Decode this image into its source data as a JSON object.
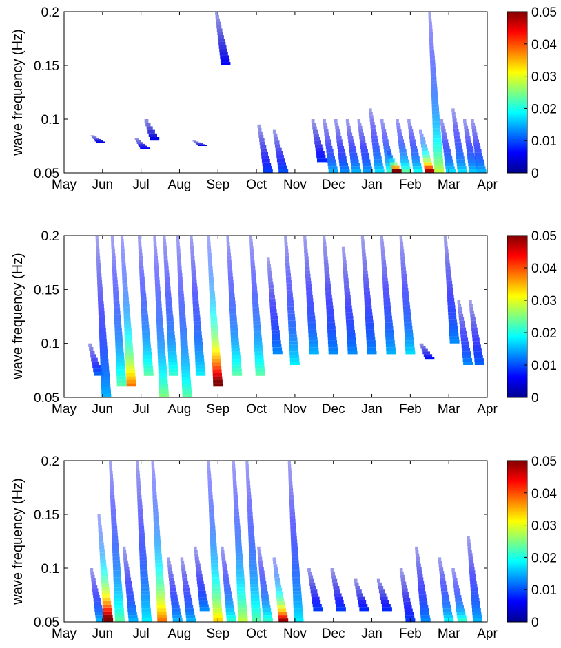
{
  "chart_data": [
    {
      "type": "heatmap",
      "title": "",
      "ylabel": "wave frequency (Hz)",
      "xlabel": "",
      "x_tick_labels": [
        "May",
        "Jun",
        "Jul",
        "Aug",
        "Sep",
        "Oct",
        "Nov",
        "Dec",
        "Jan",
        "Feb",
        "Mar",
        "Apr"
      ],
      "y_ticks": [
        0.05,
        0.1,
        0.15,
        0.2
      ],
      "y_tick_labels": [
        "0.05",
        "0.1",
        "0.15",
        "0.2"
      ],
      "ylim": [
        0.05,
        0.2
      ],
      "colorbar": {
        "min": 0,
        "max": 0.05,
        "ticks": [
          "0",
          "0.01",
          "0.02",
          "0.03",
          "0.04",
          "0.05"
        ],
        "colormap": "jet"
      },
      "events": [
        {
          "month": 0.95,
          "fmin": 0.078,
          "fmax": 0.085,
          "peak": 0.002
        },
        {
          "month": 2.1,
          "fmin": 0.072,
          "fmax": 0.082,
          "peak": 0.003
        },
        {
          "month": 2.35,
          "fmin": 0.08,
          "fmax": 0.1,
          "peak": 0.002
        },
        {
          "month": 3.6,
          "fmin": 0.075,
          "fmax": 0.08,
          "peak": 0.002
        },
        {
          "month": 4.2,
          "fmin": 0.15,
          "fmax": 0.2,
          "peak": 0.003
        },
        {
          "month": 5.3,
          "fmin": 0.05,
          "fmax": 0.095,
          "peak": 0.006
        },
        {
          "month": 5.7,
          "fmin": 0.05,
          "fmax": 0.09,
          "peak": 0.007
        },
        {
          "month": 6.7,
          "fmin": 0.06,
          "fmax": 0.1,
          "peak": 0.005
        },
        {
          "month": 7.0,
          "fmin": 0.05,
          "fmax": 0.1,
          "peak": 0.012
        },
        {
          "month": 7.3,
          "fmin": 0.05,
          "fmax": 0.1,
          "peak": 0.01
        },
        {
          "month": 7.6,
          "fmin": 0.05,
          "fmax": 0.1,
          "peak": 0.012
        },
        {
          "month": 7.9,
          "fmin": 0.05,
          "fmax": 0.1,
          "peak": 0.011
        },
        {
          "month": 8.2,
          "fmin": 0.05,
          "fmax": 0.11,
          "peak": 0.014
        },
        {
          "month": 8.5,
          "fmin": 0.05,
          "fmax": 0.1,
          "peak": 0.018
        },
        {
          "month": 8.65,
          "fmin": 0.05,
          "fmax": 0.07,
          "peak": 0.05
        },
        {
          "month": 8.9,
          "fmin": 0.05,
          "fmax": 0.1,
          "peak": 0.02
        },
        {
          "month": 9.2,
          "fmin": 0.05,
          "fmax": 0.1,
          "peak": 0.016
        },
        {
          "month": 9.5,
          "fmin": 0.05,
          "fmax": 0.09,
          "peak": 0.045
        },
        {
          "month": 9.75,
          "fmin": 0.05,
          "fmax": 0.2,
          "peak": 0.025
        },
        {
          "month": 10.05,
          "fmin": 0.05,
          "fmax": 0.1,
          "peak": 0.014
        },
        {
          "month": 10.35,
          "fmin": 0.05,
          "fmax": 0.11,
          "peak": 0.014
        },
        {
          "month": 10.65,
          "fmin": 0.05,
          "fmax": 0.1,
          "peak": 0.013
        },
        {
          "month": 10.85,
          "fmin": 0.05,
          "fmax": 0.1,
          "peak": 0.012
        }
      ]
    },
    {
      "type": "heatmap",
      "title": "",
      "ylabel": "wave frequency (Hz)",
      "xlabel": "",
      "x_tick_labels": [
        "May",
        "Jun",
        "Jul",
        "Aug",
        "Sep",
        "Oct",
        "Nov",
        "Dec",
        "Jan",
        "Feb",
        "Mar",
        "Apr"
      ],
      "y_ticks": [
        0.05,
        0.1,
        0.15,
        0.2
      ],
      "y_tick_labels": [
        "0.05",
        "0.1",
        "0.15",
        "0.2"
      ],
      "ylim": [
        0.05,
        0.2
      ],
      "colorbar": {
        "min": 0,
        "max": 0.05,
        "ticks": [
          "0",
          "0.01",
          "0.02",
          "0.03",
          "0.04",
          "0.05"
        ],
        "colormap": "jet"
      },
      "events": [
        {
          "month": 0.9,
          "fmin": 0.07,
          "fmax": 0.1,
          "peak": 0.008
        },
        {
          "month": 1.1,
          "fmin": 0.05,
          "fmax": 0.2,
          "peak": 0.012
        },
        {
          "month": 1.5,
          "fmin": 0.06,
          "fmax": 0.2,
          "peak": 0.02
        },
        {
          "month": 1.75,
          "fmin": 0.06,
          "fmax": 0.2,
          "peak": 0.035
        },
        {
          "month": 2.2,
          "fmin": 0.07,
          "fmax": 0.2,
          "peak": 0.02
        },
        {
          "month": 2.6,
          "fmin": 0.05,
          "fmax": 0.2,
          "peak": 0.022
        },
        {
          "month": 2.85,
          "fmin": 0.07,
          "fmax": 0.2,
          "peak": 0.018
        },
        {
          "month": 3.2,
          "fmin": 0.05,
          "fmax": 0.2,
          "peak": 0.02
        },
        {
          "month": 3.55,
          "fmin": 0.07,
          "fmax": 0.2,
          "peak": 0.015
        },
        {
          "month": 4.0,
          "fmin": 0.06,
          "fmax": 0.2,
          "peak": 0.05
        },
        {
          "month": 4.5,
          "fmin": 0.07,
          "fmax": 0.2,
          "peak": 0.02
        },
        {
          "month": 5.1,
          "fmin": 0.07,
          "fmax": 0.2,
          "peak": 0.02
        },
        {
          "month": 5.55,
          "fmin": 0.09,
          "fmax": 0.18,
          "peak": 0.01
        },
        {
          "month": 6.0,
          "fmin": 0.08,
          "fmax": 0.2,
          "peak": 0.015
        },
        {
          "month": 6.5,
          "fmin": 0.09,
          "fmax": 0.2,
          "peak": 0.012
        },
        {
          "month": 7.0,
          "fmin": 0.09,
          "fmax": 0.2,
          "peak": 0.01
        },
        {
          "month": 7.5,
          "fmin": 0.09,
          "fmax": 0.19,
          "peak": 0.01
        },
        {
          "month": 8.0,
          "fmin": 0.09,
          "fmax": 0.2,
          "peak": 0.01
        },
        {
          "month": 8.5,
          "fmin": 0.09,
          "fmax": 0.2,
          "peak": 0.012
        },
        {
          "month": 9.0,
          "fmin": 0.09,
          "fmax": 0.2,
          "peak": 0.014
        },
        {
          "month": 9.5,
          "fmin": 0.085,
          "fmax": 0.1,
          "peak": 0.004
        },
        {
          "month": 10.15,
          "fmin": 0.1,
          "fmax": 0.2,
          "peak": 0.01
        },
        {
          "month": 10.5,
          "fmin": 0.08,
          "fmax": 0.14,
          "peak": 0.01
        },
        {
          "month": 10.8,
          "fmin": 0.08,
          "fmax": 0.14,
          "peak": 0.008
        }
      ]
    },
    {
      "type": "heatmap",
      "title": "",
      "ylabel": "wave frequency (Hz)",
      "xlabel": "",
      "x_tick_labels": [
        "May",
        "Jun",
        "Jul",
        "Aug",
        "Sep",
        "Oct",
        "Nov",
        "Dec",
        "Jan",
        "Feb",
        "Mar",
        "Apr"
      ],
      "y_ticks": [
        0.05,
        0.1,
        0.15,
        0.2
      ],
      "y_tick_labels": [
        "0.05",
        "0.1",
        "0.15",
        "0.2"
      ],
      "ylim": [
        0.05,
        0.2
      ],
      "colorbar": {
        "min": 0,
        "max": 0.05,
        "ticks": [
          "0",
          "0.01",
          "0.02",
          "0.03",
          "0.04",
          "0.05"
        ],
        "colormap": "jet"
      },
      "events": [
        {
          "month": 0.95,
          "fmin": 0.05,
          "fmax": 0.1,
          "peak": 0.012
        },
        {
          "month": 1.15,
          "fmin": 0.05,
          "fmax": 0.15,
          "peak": 0.05
        },
        {
          "month": 1.45,
          "fmin": 0.05,
          "fmax": 0.2,
          "peak": 0.02
        },
        {
          "month": 1.8,
          "fmin": 0.05,
          "fmax": 0.12,
          "peak": 0.012
        },
        {
          "month": 2.15,
          "fmin": 0.05,
          "fmax": 0.2,
          "peak": 0.015
        },
        {
          "month": 2.55,
          "fmin": 0.05,
          "fmax": 0.2,
          "peak": 0.035
        },
        {
          "month": 2.95,
          "fmin": 0.05,
          "fmax": 0.11,
          "peak": 0.012
        },
        {
          "month": 3.3,
          "fmin": 0.05,
          "fmax": 0.11,
          "peak": 0.012
        },
        {
          "month": 3.65,
          "fmin": 0.06,
          "fmax": 0.12,
          "peak": 0.01
        },
        {
          "month": 4.0,
          "fmin": 0.05,
          "fmax": 0.2,
          "peak": 0.03
        },
        {
          "month": 4.35,
          "fmin": 0.05,
          "fmax": 0.12,
          "peak": 0.018
        },
        {
          "month": 4.65,
          "fmin": 0.05,
          "fmax": 0.2,
          "peak": 0.025
        },
        {
          "month": 5.0,
          "fmin": 0.05,
          "fmax": 0.2,
          "peak": 0.02
        },
        {
          "month": 5.3,
          "fmin": 0.05,
          "fmax": 0.12,
          "peak": 0.018
        },
        {
          "month": 5.7,
          "fmin": 0.05,
          "fmax": 0.11,
          "peak": 0.045
        },
        {
          "month": 6.1,
          "fmin": 0.05,
          "fmax": 0.2,
          "peak": 0.015
        },
        {
          "month": 6.6,
          "fmin": 0.06,
          "fmax": 0.1,
          "peak": 0.006
        },
        {
          "month": 7.2,
          "fmin": 0.06,
          "fmax": 0.1,
          "peak": 0.006
        },
        {
          "month": 7.8,
          "fmin": 0.06,
          "fmax": 0.09,
          "peak": 0.005
        },
        {
          "month": 8.4,
          "fmin": 0.06,
          "fmax": 0.09,
          "peak": 0.005
        },
        {
          "month": 9.0,
          "fmin": 0.05,
          "fmax": 0.1,
          "peak": 0.006
        },
        {
          "month": 9.4,
          "fmin": 0.05,
          "fmax": 0.12,
          "peak": 0.01
        },
        {
          "month": 10.0,
          "fmin": 0.05,
          "fmax": 0.11,
          "peak": 0.015
        },
        {
          "month": 10.35,
          "fmin": 0.05,
          "fmax": 0.1,
          "peak": 0.018
        },
        {
          "month": 10.75,
          "fmin": 0.05,
          "fmax": 0.13,
          "peak": 0.012
        }
      ]
    }
  ]
}
